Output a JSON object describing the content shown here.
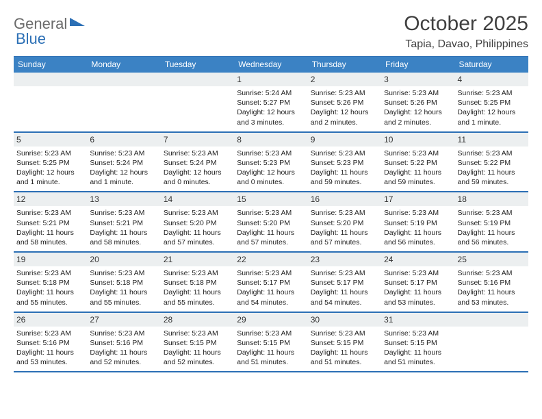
{
  "logo": {
    "text1": "General",
    "text2": "Blue"
  },
  "title": "October 2025",
  "location": "Tapia, Davao, Philippines",
  "colors": {
    "header_bg": "#3b82c4",
    "header_border": "#2b6fb5",
    "daynum_bg": "#eceff0",
    "logo_gray": "#6a6a6a",
    "logo_blue": "#2b6fb5"
  },
  "dow": [
    "Sunday",
    "Monday",
    "Tuesday",
    "Wednesday",
    "Thursday",
    "Friday",
    "Saturday"
  ],
  "weeks": [
    [
      {
        "n": "",
        "sr": "",
        "ss": "",
        "dl": ""
      },
      {
        "n": "",
        "sr": "",
        "ss": "",
        "dl": ""
      },
      {
        "n": "",
        "sr": "",
        "ss": "",
        "dl": ""
      },
      {
        "n": "1",
        "sr": "5:24 AM",
        "ss": "5:27 PM",
        "dl": "12 hours and 3 minutes."
      },
      {
        "n": "2",
        "sr": "5:23 AM",
        "ss": "5:26 PM",
        "dl": "12 hours and 2 minutes."
      },
      {
        "n": "3",
        "sr": "5:23 AM",
        "ss": "5:26 PM",
        "dl": "12 hours and 2 minutes."
      },
      {
        "n": "4",
        "sr": "5:23 AM",
        "ss": "5:25 PM",
        "dl": "12 hours and 1 minute."
      }
    ],
    [
      {
        "n": "5",
        "sr": "5:23 AM",
        "ss": "5:25 PM",
        "dl": "12 hours and 1 minute."
      },
      {
        "n": "6",
        "sr": "5:23 AM",
        "ss": "5:24 PM",
        "dl": "12 hours and 1 minute."
      },
      {
        "n": "7",
        "sr": "5:23 AM",
        "ss": "5:24 PM",
        "dl": "12 hours and 0 minutes."
      },
      {
        "n": "8",
        "sr": "5:23 AM",
        "ss": "5:23 PM",
        "dl": "12 hours and 0 minutes."
      },
      {
        "n": "9",
        "sr": "5:23 AM",
        "ss": "5:23 PM",
        "dl": "11 hours and 59 minutes."
      },
      {
        "n": "10",
        "sr": "5:23 AM",
        "ss": "5:22 PM",
        "dl": "11 hours and 59 minutes."
      },
      {
        "n": "11",
        "sr": "5:23 AM",
        "ss": "5:22 PM",
        "dl": "11 hours and 59 minutes."
      }
    ],
    [
      {
        "n": "12",
        "sr": "5:23 AM",
        "ss": "5:21 PM",
        "dl": "11 hours and 58 minutes."
      },
      {
        "n": "13",
        "sr": "5:23 AM",
        "ss": "5:21 PM",
        "dl": "11 hours and 58 minutes."
      },
      {
        "n": "14",
        "sr": "5:23 AM",
        "ss": "5:20 PM",
        "dl": "11 hours and 57 minutes."
      },
      {
        "n": "15",
        "sr": "5:23 AM",
        "ss": "5:20 PM",
        "dl": "11 hours and 57 minutes."
      },
      {
        "n": "16",
        "sr": "5:23 AM",
        "ss": "5:20 PM",
        "dl": "11 hours and 57 minutes."
      },
      {
        "n": "17",
        "sr": "5:23 AM",
        "ss": "5:19 PM",
        "dl": "11 hours and 56 minutes."
      },
      {
        "n": "18",
        "sr": "5:23 AM",
        "ss": "5:19 PM",
        "dl": "11 hours and 56 minutes."
      }
    ],
    [
      {
        "n": "19",
        "sr": "5:23 AM",
        "ss": "5:18 PM",
        "dl": "11 hours and 55 minutes."
      },
      {
        "n": "20",
        "sr": "5:23 AM",
        "ss": "5:18 PM",
        "dl": "11 hours and 55 minutes."
      },
      {
        "n": "21",
        "sr": "5:23 AM",
        "ss": "5:18 PM",
        "dl": "11 hours and 55 minutes."
      },
      {
        "n": "22",
        "sr": "5:23 AM",
        "ss": "5:17 PM",
        "dl": "11 hours and 54 minutes."
      },
      {
        "n": "23",
        "sr": "5:23 AM",
        "ss": "5:17 PM",
        "dl": "11 hours and 54 minutes."
      },
      {
        "n": "24",
        "sr": "5:23 AM",
        "ss": "5:17 PM",
        "dl": "11 hours and 53 minutes."
      },
      {
        "n": "25",
        "sr": "5:23 AM",
        "ss": "5:16 PM",
        "dl": "11 hours and 53 minutes."
      }
    ],
    [
      {
        "n": "26",
        "sr": "5:23 AM",
        "ss": "5:16 PM",
        "dl": "11 hours and 53 minutes."
      },
      {
        "n": "27",
        "sr": "5:23 AM",
        "ss": "5:16 PM",
        "dl": "11 hours and 52 minutes."
      },
      {
        "n": "28",
        "sr": "5:23 AM",
        "ss": "5:15 PM",
        "dl": "11 hours and 52 minutes."
      },
      {
        "n": "29",
        "sr": "5:23 AM",
        "ss": "5:15 PM",
        "dl": "11 hours and 51 minutes."
      },
      {
        "n": "30",
        "sr": "5:23 AM",
        "ss": "5:15 PM",
        "dl": "11 hours and 51 minutes."
      },
      {
        "n": "31",
        "sr": "5:23 AM",
        "ss": "5:15 PM",
        "dl": "11 hours and 51 minutes."
      },
      {
        "n": "",
        "sr": "",
        "ss": "",
        "dl": ""
      }
    ]
  ],
  "labels": {
    "sunrise": "Sunrise: ",
    "sunset": "Sunset: ",
    "daylight": "Daylight: "
  }
}
